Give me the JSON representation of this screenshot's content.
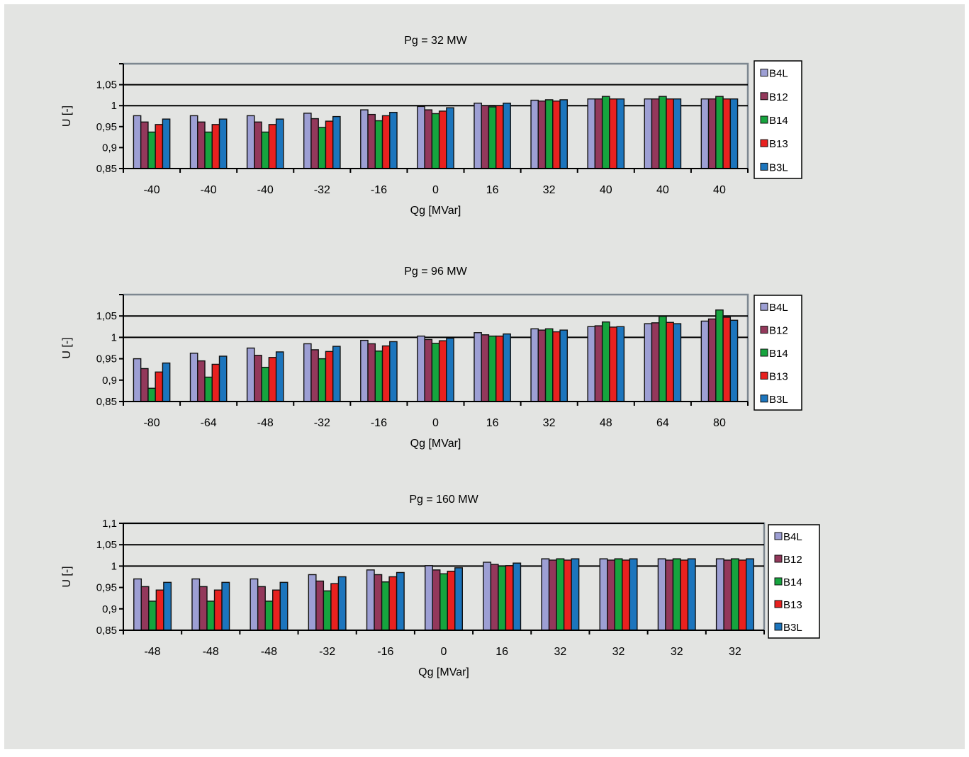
{
  "colors": {
    "background": "#e3e4e2",
    "axis": "#7d8790",
    "gridline": "#000000",
    "bar_border": "#111111"
  },
  "legend_entries": [
    {
      "name": "B4L",
      "color": "#9d9fd4"
    },
    {
      "name": "B12",
      "color": "#93385b"
    },
    {
      "name": "B14",
      "color": "#16a43e"
    },
    {
      "name": "B13",
      "color": "#e8211f"
    },
    {
      "name": "B3L",
      "color": "#1c75bd"
    }
  ],
  "chart_data": [
    {
      "type": "bar",
      "title": "Pg = 32 MW",
      "xlabel": "Qg [MVar]",
      "ylabel": "U [-]",
      "ylim": [
        0.85,
        1.1
      ],
      "yticks": [
        "0,85",
        "0,9",
        "0,95",
        "1",
        "1,05"
      ],
      "ytick_values": [
        0.85,
        0.9,
        0.95,
        1.0,
        1.05
      ],
      "gridlines": [
        1.0,
        1.05
      ],
      "legend_position": "right",
      "categories": [
        "-40",
        "-40",
        "-40",
        "-32",
        "-16",
        "0",
        "16",
        "32",
        "40",
        "40",
        "40"
      ],
      "series": [
        {
          "name": "B4L",
          "values": [
            0.976,
            0.976,
            0.976,
            0.982,
            0.99,
            0.998,
            1.006,
            1.013,
            1.016,
            1.016,
            1.016
          ]
        },
        {
          "name": "B12",
          "values": [
            0.961,
            0.961,
            0.961,
            0.969,
            0.979,
            0.99,
            1.0,
            1.011,
            1.016,
            1.016,
            1.016
          ]
        },
        {
          "name": "B14",
          "values": [
            0.937,
            0.937,
            0.937,
            0.948,
            0.964,
            0.981,
            0.997,
            1.014,
            1.022,
            1.022,
            1.022
          ]
        },
        {
          "name": "B13",
          "values": [
            0.955,
            0.955,
            0.955,
            0.963,
            0.976,
            0.987,
            1.0,
            1.011,
            1.016,
            1.016,
            1.016
          ]
        },
        {
          "name": "B3L",
          "values": [
            0.968,
            0.968,
            0.968,
            0.974,
            0.984,
            0.995,
            1.006,
            1.014,
            1.016,
            1.016,
            1.016
          ]
        }
      ]
    },
    {
      "type": "bar",
      "title": "Pg = 96 MW",
      "xlabel": "Qg [MVar]",
      "ylabel": "U [-]",
      "ylim": [
        0.85,
        1.1
      ],
      "yticks": [
        "0,85",
        "0,9",
        "0,95",
        "1",
        "1,05"
      ],
      "ytick_values": [
        0.85,
        0.9,
        0.95,
        1.0,
        1.05
      ],
      "gridlines": [
        1.0,
        1.05
      ],
      "legend_position": "right",
      "categories": [
        "-80",
        "-64",
        "-48",
        "-32",
        "-16",
        "0",
        "16",
        "32",
        "48",
        "64",
        "80"
      ],
      "series": [
        {
          "name": "B4L",
          "values": [
            0.95,
            0.963,
            0.975,
            0.985,
            0.993,
            1.003,
            1.011,
            1.02,
            1.025,
            1.032,
            1.038
          ]
        },
        {
          "name": "B12",
          "values": [
            0.927,
            0.945,
            0.958,
            0.971,
            0.985,
            0.995,
            1.006,
            1.017,
            1.027,
            1.034,
            1.043
          ]
        },
        {
          "name": "B14",
          "values": [
            0.881,
            0.907,
            0.93,
            0.95,
            0.968,
            0.986,
            1.003,
            1.02,
            1.036,
            1.049,
            1.064
          ]
        },
        {
          "name": "B13",
          "values": [
            0.919,
            0.937,
            0.953,
            0.967,
            0.98,
            0.992,
            1.003,
            1.013,
            1.024,
            1.035,
            1.047
          ]
        },
        {
          "name": "B3L",
          "values": [
            0.94,
            0.956,
            0.966,
            0.979,
            0.99,
            0.998,
            1.008,
            1.017,
            1.025,
            1.032,
            1.04
          ]
        }
      ]
    },
    {
      "type": "bar",
      "title": "Pg = 160 MW",
      "xlabel": "Qg [MVar]",
      "ylabel": "U [-]",
      "ylim": [
        0.85,
        1.1
      ],
      "yticks": [
        "0,85",
        "0,9",
        "0,95",
        "1",
        "1,05",
        "1,1"
      ],
      "ytick_values": [
        0.85,
        0.9,
        0.95,
        1.0,
        1.05,
        1.1
      ],
      "gridlines": [
        1.0,
        1.05,
        1.1
      ],
      "legend_position": "right",
      "categories": [
        "-48",
        "-48",
        "-48",
        "-32",
        "-16",
        "0",
        "16",
        "32",
        "32",
        "32",
        "32"
      ],
      "series": [
        {
          "name": "B4L",
          "values": [
            0.97,
            0.97,
            0.97,
            0.98,
            0.991,
            1.001,
            1.009,
            1.017,
            1.017,
            1.017,
            1.017
          ]
        },
        {
          "name": "B12",
          "values": [
            0.952,
            0.952,
            0.952,
            0.965,
            0.98,
            0.991,
            1.004,
            1.014,
            1.014,
            1.014,
            1.014
          ]
        },
        {
          "name": "B14",
          "values": [
            0.918,
            0.918,
            0.918,
            0.942,
            0.963,
            0.982,
            1.0,
            1.017,
            1.017,
            1.017,
            1.017
          ]
        },
        {
          "name": "B13",
          "values": [
            0.944,
            0.944,
            0.944,
            0.959,
            0.975,
            0.988,
            1.001,
            1.014,
            1.014,
            1.014,
            1.014
          ]
        },
        {
          "name": "B3L",
          "values": [
            0.962,
            0.962,
            0.962,
            0.975,
            0.985,
            0.996,
            1.007,
            1.017,
            1.017,
            1.017,
            1.017
          ]
        }
      ]
    }
  ]
}
